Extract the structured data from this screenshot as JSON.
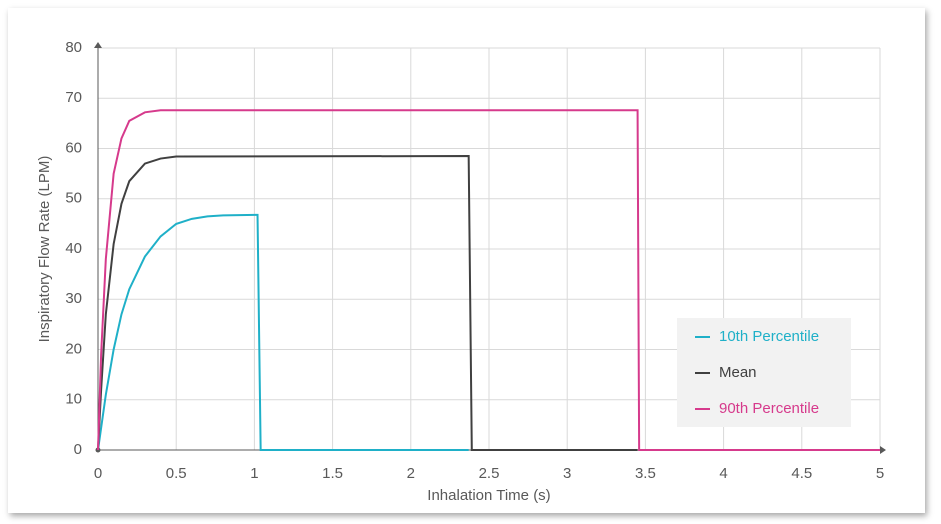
{
  "chart_data": {
    "type": "line",
    "x_label": "Inhalation Time (s)",
    "y_label": "Inspiratory Flow Rate (LPM)",
    "xlim": [
      0,
      5
    ],
    "xticks": [
      0,
      0.5,
      1,
      1.5,
      2,
      2.5,
      3,
      3.5,
      4,
      4.5,
      5
    ],
    "ylim": [
      0,
      80
    ],
    "yticks": [
      0,
      10,
      20,
      30,
      40,
      50,
      60,
      70,
      80
    ],
    "grid": true,
    "legend": "bottom-right",
    "series": [
      {
        "name": "10th Percentile",
        "color": "#1fb0c8",
        "x": [
          0,
          0.05,
          0.1,
          0.15,
          0.2,
          0.3,
          0.4,
          0.5,
          0.6,
          0.7,
          0.8,
          1.02,
          1.04,
          2.37
        ],
        "values": [
          0,
          11,
          20,
          27,
          32,
          38.5,
          42.5,
          45,
          46,
          46.5,
          46.7,
          46.8,
          0,
          0
        ]
      },
      {
        "name": "Mean",
        "color": "#404040",
        "x": [
          0,
          0.02,
          0.05,
          0.1,
          0.15,
          0.2,
          0.3,
          0.4,
          0.5,
          2.37,
          2.39,
          3.45
        ],
        "values": [
          0,
          12,
          27,
          41,
          49,
          53.5,
          57,
          58,
          58.4,
          58.5,
          0,
          0
        ]
      },
      {
        "name": "90th Percentile",
        "color": "#d63a8c",
        "x": [
          0,
          0.02,
          0.05,
          0.1,
          0.15,
          0.2,
          0.3,
          0.4,
          3.45,
          3.46,
          5
        ],
        "values": [
          0,
          19,
          38,
          55,
          62,
          65.5,
          67.2,
          67.6,
          67.6,
          0,
          0
        ]
      }
    ]
  }
}
